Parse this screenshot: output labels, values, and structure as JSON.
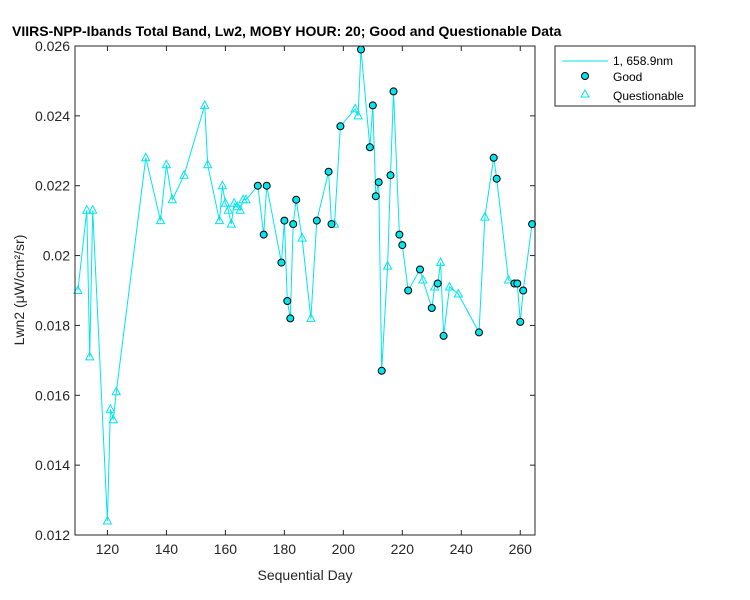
{
  "chart_data": {
    "type": "line",
    "title": "VIIRS-NPP-Ibands Total Band, Lw2, MOBY HOUR: 20;  Good and Questionable Data",
    "xlabel": "Sequential Day",
    "ylabel": "Lwn2 (μW/cm²/sr)",
    "xlim": [
      109,
      265
    ],
    "ylim": [
      0.012,
      0.026
    ],
    "xticks": [
      120,
      140,
      160,
      180,
      200,
      220,
      240,
      260
    ],
    "xtick_labels": [
      "120",
      "140",
      "160",
      "180",
      "200",
      "220",
      "240",
      "260"
    ],
    "yticks": [
      0.012,
      0.014,
      0.016,
      0.018,
      0.02,
      0.022,
      0.024,
      0.026
    ],
    "ytick_labels": [
      "0.012",
      "0.014",
      "0.016",
      "0.018",
      "0.02",
      "0.022",
      "0.024",
      "0.026"
    ],
    "grid": false,
    "legend_position": "outside-top-right",
    "colors": {
      "series": "#00e5ee",
      "good_fill": "#00e5ee",
      "marker_edge": "#000000",
      "questionable": "#00e5ee"
    },
    "series": [
      {
        "name": "1, 658.9nm",
        "x": [
          110,
          113,
          114,
          115,
          120,
          121,
          122,
          123,
          133,
          138,
          140,
          142,
          146,
          153,
          154,
          158,
          159,
          160,
          161,
          162,
          163,
          164,
          165,
          166,
          167,
          171,
          173,
          174,
          179,
          180,
          181,
          182,
          183,
          184,
          186,
          189,
          191,
          195,
          196,
          197,
          199,
          204,
          205,
          206,
          209,
          210,
          211,
          212,
          213,
          215,
          216,
          217,
          219,
          220,
          222,
          226,
          227,
          230,
          231,
          232,
          233,
          234,
          236,
          239,
          246,
          248,
          251,
          252,
          256,
          258,
          259,
          260,
          261,
          264
        ],
        "y": [
          0.019,
          0.0213,
          0.0171,
          0.0213,
          0.0124,
          0.0156,
          0.0153,
          0.0161,
          0.0228,
          0.021,
          0.0226,
          0.0216,
          0.0223,
          0.0243,
          0.0226,
          0.021,
          0.022,
          0.0215,
          0.0213,
          0.0209,
          0.0215,
          0.0214,
          0.0213,
          0.0216,
          0.0216,
          0.022,
          0.0206,
          0.022,
          0.0198,
          0.021,
          0.0187,
          0.0182,
          0.0209,
          0.0216,
          0.0205,
          0.0182,
          0.021,
          0.0224,
          0.0209,
          0.0209,
          0.0237,
          0.0242,
          0.024,
          0.0259,
          0.0231,
          0.0243,
          0.0217,
          0.0221,
          0.0167,
          0.0197,
          0.0223,
          0.0247,
          0.0206,
          0.0203,
          0.019,
          0.0196,
          0.0193,
          0.0185,
          0.0191,
          0.0192,
          0.0198,
          0.0177,
          0.0191,
          0.0189,
          0.0178,
          0.0211,
          0.0228,
          0.0222,
          0.0193,
          0.0192,
          0.0192,
          0.0181,
          0.019,
          0.0209
        ]
      },
      {
        "name": "Good",
        "x": [
          171,
          173,
          174,
          179,
          180,
          181,
          182,
          183,
          184,
          191,
          195,
          196,
          199,
          206,
          209,
          210,
          211,
          212,
          213,
          216,
          217,
          219,
          220,
          222,
          226,
          230,
          232,
          234,
          246,
          251,
          252,
          258,
          259,
          260,
          261,
          264
        ],
        "y": [
          0.022,
          0.0206,
          0.022,
          0.0198,
          0.021,
          0.0187,
          0.0182,
          0.0209,
          0.0216,
          0.021,
          0.0224,
          0.0209,
          0.0237,
          0.0259,
          0.0231,
          0.0243,
          0.0217,
          0.0221,
          0.0167,
          0.0223,
          0.0247,
          0.0206,
          0.0203,
          0.019,
          0.0196,
          0.0185,
          0.0192,
          0.0177,
          0.0178,
          0.0228,
          0.0222,
          0.0192,
          0.0192,
          0.0181,
          0.019,
          0.0209
        ]
      },
      {
        "name": "Questionable",
        "x": [
          110,
          113,
          114,
          115,
          120,
          121,
          122,
          123,
          133,
          138,
          140,
          142,
          146,
          153,
          154,
          158,
          159,
          160,
          161,
          162,
          163,
          164,
          165,
          166,
          167,
          186,
          189,
          197,
          204,
          205,
          215,
          227,
          231,
          233,
          236,
          239,
          248,
          256
        ],
        "y": [
          0.019,
          0.0213,
          0.0171,
          0.0213,
          0.0124,
          0.0156,
          0.0153,
          0.0161,
          0.0228,
          0.021,
          0.0226,
          0.0216,
          0.0223,
          0.0243,
          0.0226,
          0.021,
          0.022,
          0.0215,
          0.0213,
          0.0209,
          0.0215,
          0.0214,
          0.0213,
          0.0216,
          0.0216,
          0.0205,
          0.0182,
          0.0209,
          0.0242,
          0.024,
          0.0197,
          0.0193,
          0.0191,
          0.0198,
          0.0191,
          0.0189,
          0.0211,
          0.0193
        ]
      }
    ]
  }
}
